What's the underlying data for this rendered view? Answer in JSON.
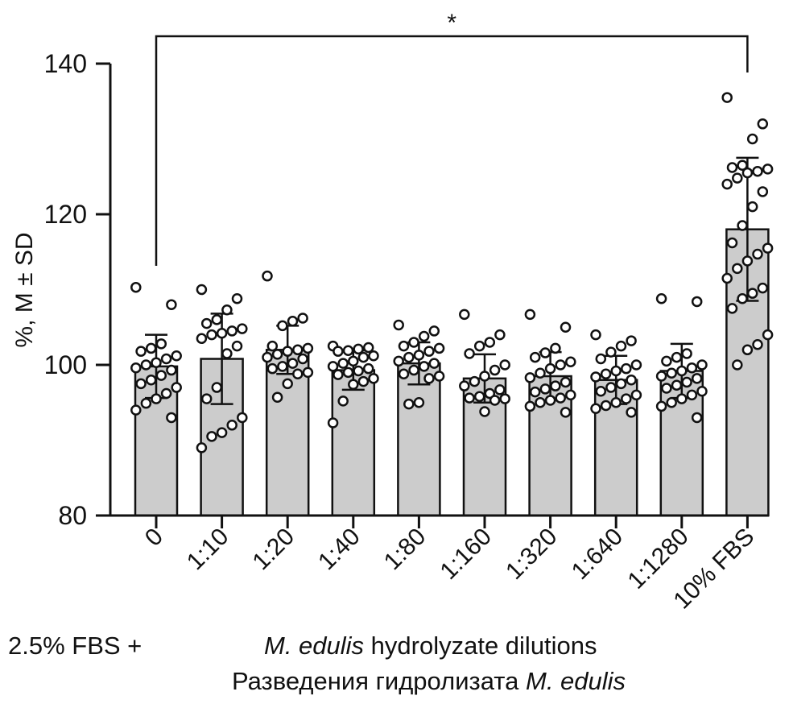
{
  "chart_data": {
    "type": "bar",
    "ylabel": "%, M ± SD",
    "ylim": [
      80,
      140
    ],
    "yticks": [
      80,
      100,
      120,
      140
    ],
    "categories": [
      "0",
      "1:10",
      "1:20",
      "1:40",
      "1:80",
      "1:160",
      "1:320",
      "1:640",
      "1:1280",
      "10% FBS"
    ],
    "values": [
      99.8,
      100.8,
      102.0,
      99.3,
      100.2,
      98.2,
      98.5,
      98.0,
      99.2,
      118.0
    ],
    "sd": [
      4.2,
      6.0,
      3.2,
      2.6,
      2.8,
      3.2,
      3.2,
      3.2,
      3.6,
      9.5
    ],
    "points": [
      [
        110.3,
        108.0,
        102.8,
        102.2,
        101.8,
        101.2,
        100.8,
        100.3,
        100.0,
        99.6,
        99.3,
        98.6,
        98.0,
        97.5,
        97.0,
        96.2,
        95.5,
        94.9,
        94.0,
        93.0
      ],
      [
        110.0,
        108.8,
        107.3,
        106.0,
        105.5,
        104.8,
        104.5,
        104.2,
        104.0,
        103.5,
        102.5,
        101.5,
        97.0,
        95.5,
        93.0,
        92.0,
        91.0,
        90.5,
        89.0
      ],
      [
        111.8,
        106.2,
        105.8,
        105.2,
        102.5,
        102.2,
        102.0,
        101.8,
        101.4,
        101.0,
        100.8,
        100.2,
        99.8,
        99.5,
        99.0,
        98.8,
        97.5,
        95.7
      ],
      [
        102.5,
        102.3,
        102.1,
        101.9,
        101.8,
        101.2,
        101.0,
        100.5,
        100.2,
        99.8,
        99.5,
        99.2,
        99.0,
        98.7,
        98.2,
        97.8,
        97.4,
        95.2,
        92.3
      ],
      [
        105.3,
        104.5,
        103.8,
        103.0,
        102.5,
        102.2,
        101.8,
        101.3,
        101.0,
        100.5,
        100.2,
        99.8,
        99.3,
        98.8,
        98.5,
        98.2,
        95.0,
        94.8
      ],
      [
        106.7,
        104.0,
        103.0,
        102.5,
        101.5,
        100.0,
        99.3,
        98.5,
        97.8,
        97.2,
        96.7,
        96.2,
        95.8,
        95.6,
        95.5,
        95.3,
        93.8
      ],
      [
        106.7,
        105.0,
        102.2,
        101.6,
        101.0,
        100.4,
        100.0,
        99.5,
        98.9,
        98.3,
        97.7,
        97.2,
        96.8,
        96.4,
        96.0,
        95.6,
        95.3,
        95.0,
        94.5,
        93.7
      ],
      [
        104.0,
        103.2,
        102.5,
        101.7,
        100.8,
        100.0,
        99.5,
        99.2,
        98.8,
        98.4,
        98.0,
        97.5,
        97.0,
        96.5,
        96.0,
        95.5,
        95.0,
        94.6,
        94.2,
        93.7
      ],
      [
        108.8,
        108.4,
        101.5,
        101.0,
        100.5,
        100.0,
        99.6,
        99.2,
        98.9,
        98.5,
        98.2,
        97.7,
        97.3,
        96.9,
        96.5,
        96.0,
        95.5,
        95.0,
        94.5,
        93.0
      ],
      [
        135.5,
        132.0,
        130.0,
        126.5,
        126.2,
        126.0,
        125.7,
        125.5,
        124.8,
        124.0,
        123.0,
        121.0,
        118.5,
        116.2,
        115.5,
        114.7,
        113.8,
        112.8,
        111.5,
        110.2,
        109.5,
        108.8,
        107.5,
        104.0,
        102.7,
        102.0,
        100.0
      ]
    ],
    "significance": {
      "from": 0,
      "to": 9,
      "label": "*"
    },
    "grid": false
  },
  "labels": {
    "prefix": "2.5% FBS +",
    "line1_italic": "M. edulis",
    "line1_rest": " hydrolyzate dilutions",
    "line2_rest": "Разведения гидролизата ",
    "line2_italic": "M. edulis"
  },
  "colors": {
    "bar": "#cccccc",
    "axis": "#111111",
    "point_fill": "#ffffff"
  }
}
